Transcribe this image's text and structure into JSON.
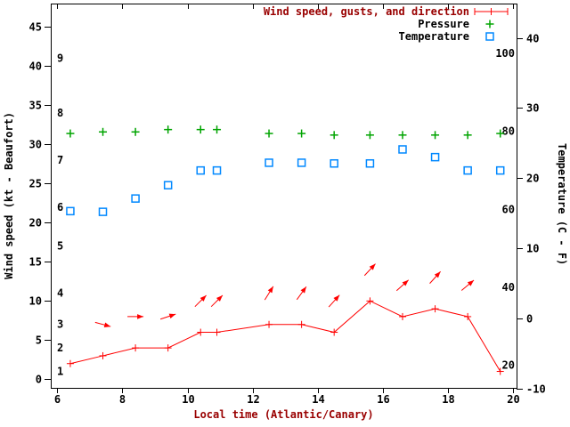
{
  "legend": {
    "items": [
      {
        "label": "Wind speed, gusts, and direction",
        "label_color": "#990000",
        "marker": "errorbar-line",
        "color": "#ff0000"
      },
      {
        "label": "Pressure",
        "label_color": "#000000",
        "marker": "plus",
        "color": "#00a400"
      },
      {
        "label": "Temperature",
        "label_color": "#000000",
        "marker": "open-square",
        "color": "#0088ff"
      }
    ],
    "position": "top-right"
  },
  "chart_data": {
    "type": "line",
    "title": "",
    "xlabel": "Local time (Atlantic/Canary)",
    "ylabel_left": "Wind speed (kt - Beaufort)",
    "ylabel_right": "Temperature (C - F)",
    "xlim": [
      5.8,
      20.1
    ],
    "ylim_left_kt": [
      -1.1,
      48.0
    ],
    "ylim_right_c": [
      -9.9,
      44.9
    ],
    "x_ticks": [
      6,
      8,
      10,
      12,
      14,
      16,
      18,
      20
    ],
    "y_ticks_left": [
      0,
      5,
      10,
      15,
      20,
      25,
      30,
      35,
      40,
      45
    ],
    "y_ticks_right": [
      -10,
      0,
      10,
      20,
      30,
      40
    ],
    "beaufort_labels": [
      {
        "beaufort": "1",
        "kt": 1
      },
      {
        "beaufort": "2",
        "kt": 4
      },
      {
        "beaufort": "3",
        "kt": 7
      },
      {
        "beaufort": "4",
        "kt": 11
      },
      {
        "beaufort": "5",
        "kt": 17
      },
      {
        "beaufort": "6",
        "kt": 22
      },
      {
        "beaufort": "7",
        "kt": 28
      },
      {
        "beaufort": "8",
        "kt": 34
      },
      {
        "beaufort": "9",
        "kt": 41
      }
    ],
    "fahrenheit_labels": [
      20,
      40,
      60,
      80,
      100
    ],
    "grid": false,
    "x": [
      6.4,
      7.4,
      8.4,
      9.4,
      10.4,
      10.9,
      12.5,
      13.5,
      14.5,
      15.6,
      16.6,
      17.6,
      18.6,
      19.6
    ],
    "series": [
      {
        "name": "Wind speed, gusts, and direction",
        "color": "#ff0000",
        "marker": "plus",
        "line": true,
        "axis": "left",
        "values": [
          2,
          3,
          4,
          4,
          6,
          6,
          7,
          7,
          6,
          10,
          8,
          9,
          8,
          1
        ]
      },
      {
        "name": "Pressure",
        "color": "#00a400",
        "marker": "plus",
        "line": false,
        "axis": "left",
        "values": [
          31.4,
          31.6,
          31.6,
          31.9,
          31.9,
          31.9,
          31.4,
          31.4,
          31.2,
          31.2,
          31.2,
          31.2,
          31.2,
          31.4
        ]
      },
      {
        "name": "Temperature",
        "color": "#0088ff",
        "marker": "open-square",
        "line": false,
        "axis": "right",
        "values": [
          15.3,
          15.2,
          17.1,
          19.0,
          21.1,
          21.1,
          22.2,
          22.2,
          22.1,
          22.1,
          24.1,
          23.0,
          21.1,
          21.1
        ]
      }
    ],
    "wind_arrows": [
      {
        "x": 7.4,
        "y_kt": 7,
        "angle_deg": -15
      },
      {
        "x": 8.4,
        "y_kt": 8,
        "angle_deg": 0
      },
      {
        "x": 9.4,
        "y_kt": 8,
        "angle_deg": 18
      },
      {
        "x": 10.4,
        "y_kt": 10,
        "angle_deg": 45
      },
      {
        "x": 10.9,
        "y_kt": 10,
        "angle_deg": 45
      },
      {
        "x": 12.5,
        "y_kt": 11,
        "angle_deg": 58
      },
      {
        "x": 13.5,
        "y_kt": 11,
        "angle_deg": 54
      },
      {
        "x": 14.5,
        "y_kt": 10,
        "angle_deg": 48
      },
      {
        "x": 15.6,
        "y_kt": 14,
        "angle_deg": 47
      },
      {
        "x": 16.6,
        "y_kt": 12,
        "angle_deg": 42
      },
      {
        "x": 17.6,
        "y_kt": 13,
        "angle_deg": 48
      },
      {
        "x": 18.6,
        "y_kt": 12,
        "angle_deg": 40
      }
    ]
  }
}
